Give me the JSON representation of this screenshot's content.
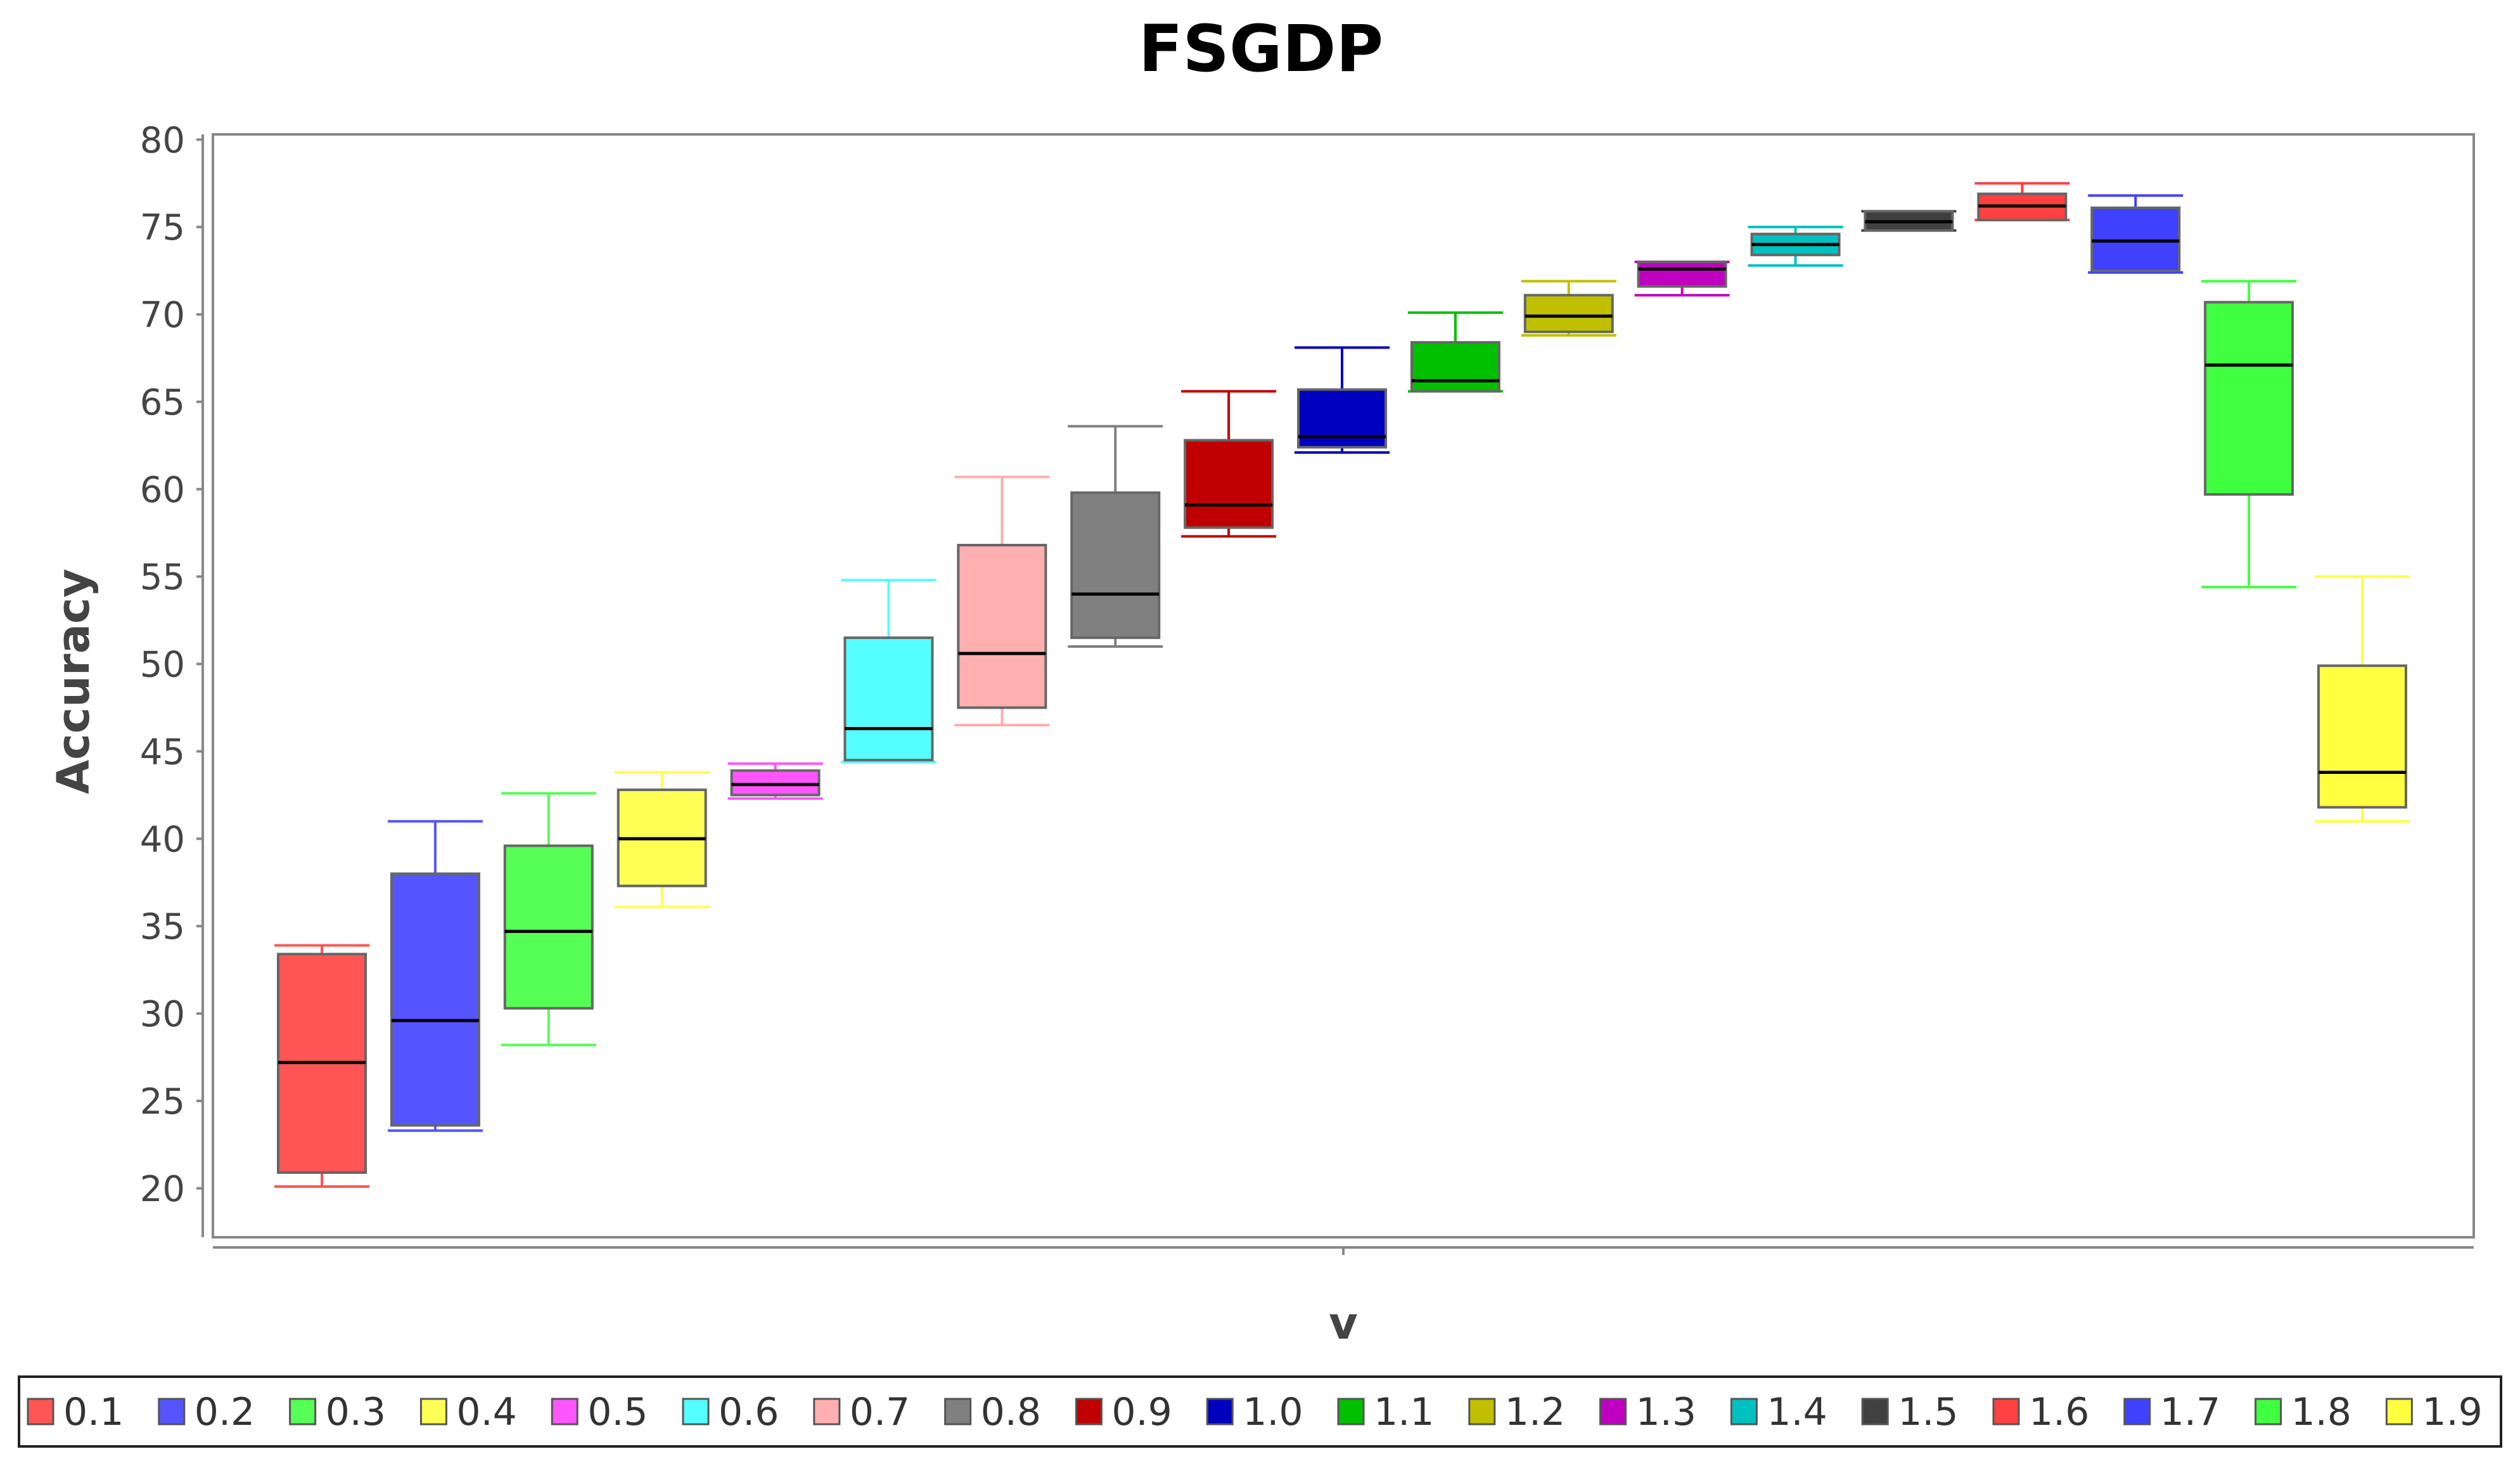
{
  "chart_data": {
    "type": "boxplot",
    "title": "FSGDP",
    "xlabel": "v",
    "ylabel": "Accuracy",
    "ylim": [
      17.2,
      80.3
    ],
    "yticks": [
      20,
      25,
      30,
      35,
      40,
      45,
      50,
      55,
      60,
      65,
      70,
      75,
      80
    ],
    "grid": false,
    "legend_position": "bottom",
    "series": [
      {
        "name": "0.1",
        "color": "#ff5555",
        "min": 20.1,
        "q1": 20.9,
        "median": 27.2,
        "q3": 33.4,
        "max": 33.9
      },
      {
        "name": "0.2",
        "color": "#5555ff",
        "min": 23.3,
        "q1": 23.6,
        "median": 29.6,
        "q3": 38.0,
        "max": 41.0
      },
      {
        "name": "0.3",
        "color": "#55ff55",
        "min": 28.2,
        "q1": 30.3,
        "median": 34.7,
        "q3": 39.6,
        "max": 42.6
      },
      {
        "name": "0.4",
        "color": "#ffff55",
        "min": 36.1,
        "q1": 37.3,
        "median": 40.0,
        "q3": 42.8,
        "max": 43.8
      },
      {
        "name": "0.5",
        "color": "#ff55ff",
        "min": 42.3,
        "q1": 42.5,
        "median": 43.1,
        "q3": 43.9,
        "max": 44.3
      },
      {
        "name": "0.6",
        "color": "#55ffff",
        "min": 44.4,
        "q1": 44.5,
        "median": 46.3,
        "q3": 51.5,
        "max": 54.8
      },
      {
        "name": "0.7",
        "color": "#ffafaf",
        "min": 46.5,
        "q1": 47.5,
        "median": 50.6,
        "q3": 56.8,
        "max": 60.7
      },
      {
        "name": "0.8",
        "color": "#808080",
        "min": 51.0,
        "q1": 51.5,
        "median": 54.0,
        "q3": 59.8,
        "max": 63.6
      },
      {
        "name": "0.9",
        "color": "#c00000",
        "min": 57.3,
        "q1": 57.8,
        "median": 59.1,
        "q3": 62.8,
        "max": 65.6
      },
      {
        "name": "1.0",
        "color": "#0000c0",
        "min": 62.1,
        "q1": 62.4,
        "median": 63.0,
        "q3": 65.7,
        "max": 68.1
      },
      {
        "name": "1.1",
        "color": "#00c000",
        "min": 65.6,
        "q1": 65.6,
        "median": 66.2,
        "q3": 68.4,
        "max": 70.1
      },
      {
        "name": "1.2",
        "color": "#c0c000",
        "min": 68.8,
        "q1": 69.0,
        "median": 69.9,
        "q3": 71.1,
        "max": 71.9
      },
      {
        "name": "1.3",
        "color": "#c000c0",
        "min": 71.1,
        "q1": 71.6,
        "median": 72.6,
        "q3": 73.0,
        "max": 73.0
      },
      {
        "name": "1.4",
        "color": "#00c0c0",
        "min": 72.8,
        "q1": 73.4,
        "median": 74.0,
        "q3": 74.6,
        "max": 75.0
      },
      {
        "name": "1.5",
        "color": "#404040",
        "min": 74.8,
        "q1": 74.8,
        "median": 75.3,
        "q3": 75.9,
        "max": 75.9
      },
      {
        "name": "1.6",
        "color": "#ff4040",
        "min": 75.4,
        "q1": 75.4,
        "median": 76.2,
        "q3": 76.9,
        "max": 77.5
      },
      {
        "name": "1.7",
        "color": "#4040ff",
        "min": 72.4,
        "q1": 72.5,
        "median": 74.2,
        "q3": 76.1,
        "max": 76.8
      },
      {
        "name": "1.8",
        "color": "#40ff40",
        "min": 54.4,
        "q1": 59.7,
        "median": 67.1,
        "q3": 70.7,
        "max": 71.9
      },
      {
        "name": "1.9",
        "color": "#ffff40",
        "min": 41.0,
        "q1": 41.8,
        "median": 43.8,
        "q3": 49.9,
        "max": 55.0
      }
    ]
  }
}
